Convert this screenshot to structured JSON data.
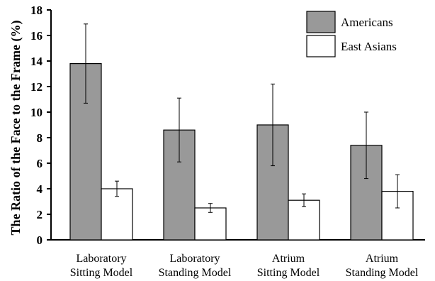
{
  "chart_data": {
    "type": "bar",
    "title": "",
    "ylabel": "The Ratio of the Face to the Frame (%)",
    "xlabel": "",
    "ylim": [
      0,
      18
    ],
    "yticks": [
      0,
      2,
      4,
      6,
      8,
      10,
      12,
      14,
      16,
      18
    ],
    "grid": false,
    "legend_position": "top-right",
    "categories": [
      [
        "Laboratory",
        "Sitting Model"
      ],
      [
        "Laboratory",
        "Standing Model"
      ],
      [
        "Atrium",
        "Sitting Model"
      ],
      [
        "Atrium",
        "Standing Model"
      ]
    ],
    "series": [
      {
        "name": "Americans",
        "color": "#999999",
        "values": [
          13.8,
          8.6,
          9.0,
          7.4
        ],
        "error": [
          3.1,
          2.5,
          3.2,
          2.6
        ]
      },
      {
        "name": "East Asians",
        "color": "#ffffff",
        "values": [
          4.0,
          2.5,
          3.1,
          3.8
        ],
        "error": [
          0.6,
          0.35,
          0.5,
          1.3
        ]
      }
    ]
  }
}
